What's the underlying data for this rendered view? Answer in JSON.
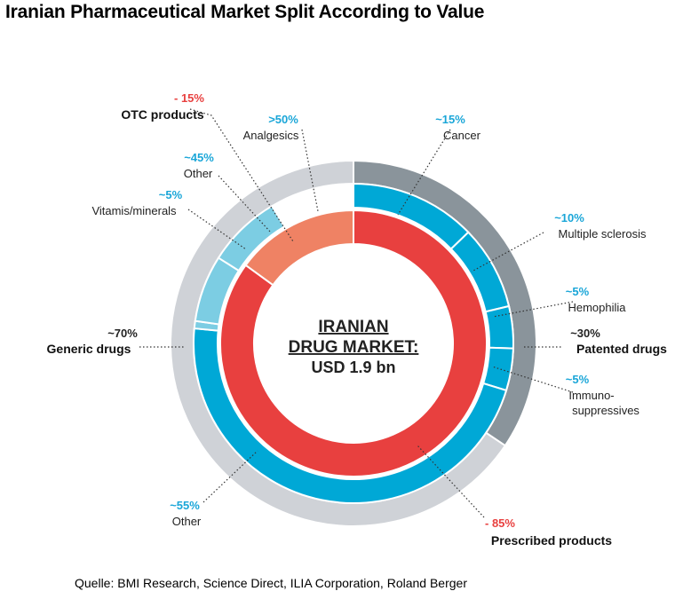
{
  "title": "Iranian Pharmaceutical Market Split According to Value",
  "source": "Quelle: BMI Research, Science Direct, ILIA Corporation, Roland Berger",
  "chart_data": {
    "type": "pie",
    "variant": "multi-ring donut",
    "center": {
      "line1": "IRANIAN",
      "line2": "DRUG MARKET:",
      "line3": "USD 1.9 bn"
    },
    "colors": {
      "prescribed": "#e8403f",
      "otc": "#ef8264",
      "prescribed_sub": "#00a8d6",
      "otc_sub": "#7ccde3",
      "generic": "#cfd2d7",
      "patented": "#8a949b",
      "red_text": "#e8403f",
      "blue_text": "#1aa6d8"
    },
    "inner_ring": [
      {
        "name": "Prescribed products",
        "pct": "- 85%",
        "value": 85
      },
      {
        "name": "OTC products",
        "pct": "- 15%",
        "value": 15
      }
    ],
    "outer_ring": [
      {
        "name": "Generic drugs",
        "pct": "~70%",
        "value": 70
      },
      {
        "name": "Patented drugs",
        "pct": "~30%",
        "value": 30
      }
    ],
    "middle_ring": [
      {
        "name": "Cancer",
        "pct": "~15%",
        "value": 15,
        "group": "prescribed"
      },
      {
        "name": "Multiple sclerosis",
        "pct": "~10%",
        "value": 10,
        "group": "prescribed"
      },
      {
        "name": "Hemophilia",
        "pct": "~5%",
        "value": 5,
        "group": "prescribed"
      },
      {
        "name": "Immuno-suppressives",
        "pct": "~5%",
        "value": 5,
        "group": "prescribed"
      },
      {
        "name": "Other",
        "pct": "~55%",
        "value": 55,
        "group": "prescribed"
      },
      {
        "name": "Vitamis/minerals",
        "pct": "~5%",
        "value": 5,
        "group": "otc"
      },
      {
        "name": "Other",
        "pct": "~45%",
        "value": 45,
        "group": "otc"
      },
      {
        "name": "Analgesics",
        "pct": ">50%",
        "value": 50,
        "group": "otc"
      }
    ]
  }
}
